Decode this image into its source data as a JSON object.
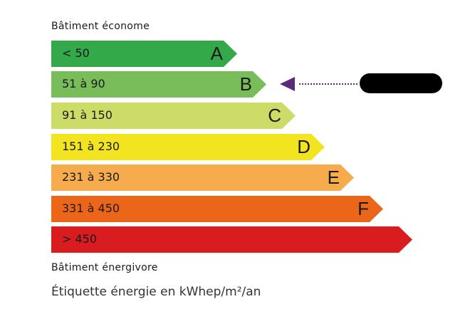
{
  "top_caption": "Bâtiment économe",
  "bottom_caption": "Bâtiment énergivore",
  "footer": "Étiquette énergie en kWhep/m²/an",
  "classes": [
    {
      "range": "< 50",
      "letter": "A",
      "color": "#33a94a"
    },
    {
      "range": "51 à 90",
      "letter": "B",
      "color": "#79bc5a"
    },
    {
      "range": "91 à 150",
      "letter": "C",
      "color": "#cddc67"
    },
    {
      "range": "151 à 230",
      "letter": "D",
      "color": "#f3e420"
    },
    {
      "range": "231 à 330",
      "letter": "E",
      "color": "#f6ab4d"
    },
    {
      "range": "331 à 450",
      "letter": "F",
      "color": "#eb6619"
    },
    {
      "range": "> 450",
      "letter": "",
      "color": "#d91c20"
    }
  ],
  "indicator": {
    "class": "B",
    "color": "#5b2a7c",
    "label_redacted": true
  }
}
